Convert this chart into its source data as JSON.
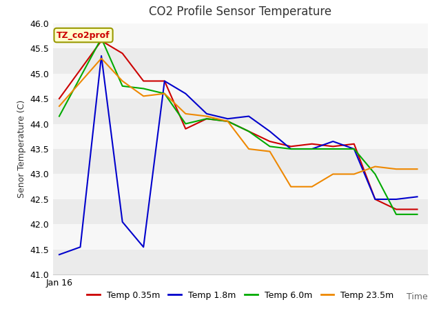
{
  "title": "CO2 Profile Sensor Temperature",
  "xlabel": "Time",
  "ylabel": "Senor Temperature (C)",
  "ylim": [
    41.0,
    46.0
  ],
  "yticks": [
    41.0,
    41.5,
    42.0,
    42.5,
    43.0,
    43.5,
    44.0,
    44.5,
    45.0,
    45.5,
    46.0
  ],
  "xticklabels": [
    "Jan 16"
  ],
  "annotation": "TZ_co2prof",
  "figure_bg": "#ffffff",
  "plot_bg": "#ffffff",
  "grid_color": "#e0e0e0",
  "series": {
    "Temp 0.35m": {
      "color": "#cc0000",
      "x": [
        0,
        2,
        3,
        4,
        5,
        6,
        7,
        8,
        9,
        10,
        11,
        12,
        13,
        14,
        15,
        16,
        17
      ],
      "y": [
        44.5,
        45.65,
        45.4,
        44.85,
        44.85,
        43.9,
        44.1,
        44.05,
        43.85,
        43.65,
        43.55,
        43.6,
        43.55,
        43.6,
        42.5,
        42.3,
        42.3
      ]
    },
    "Temp 1.8m": {
      "color": "#0000cc",
      "x": [
        0,
        1,
        2,
        3,
        4,
        5,
        6,
        7,
        8,
        9,
        10,
        11,
        12,
        13,
        14,
        15,
        16,
        17
      ],
      "y": [
        41.4,
        41.55,
        45.35,
        42.05,
        41.55,
        44.85,
        44.6,
        44.2,
        44.1,
        44.15,
        43.85,
        43.5,
        43.5,
        43.65,
        43.5,
        42.5,
        42.5,
        42.55
      ]
    },
    "Temp 6.0m": {
      "color": "#00aa00",
      "x": [
        0,
        2,
        3,
        4,
        5,
        6,
        7,
        8,
        9,
        10,
        11,
        12,
        13,
        14,
        15,
        16,
        17
      ],
      "y": [
        44.15,
        45.7,
        44.75,
        44.7,
        44.6,
        44.0,
        44.1,
        44.05,
        43.85,
        43.55,
        43.5,
        43.5,
        43.5,
        43.5,
        43.0,
        42.2,
        42.2
      ]
    },
    "Temp 23.5m": {
      "color": "#ee8800",
      "x": [
        0,
        2,
        3,
        4,
        5,
        6,
        7,
        8,
        9,
        10,
        11,
        12,
        13,
        14,
        15,
        16,
        17
      ],
      "y": [
        44.35,
        45.3,
        44.85,
        44.55,
        44.6,
        44.2,
        44.15,
        44.05,
        43.5,
        43.45,
        42.75,
        42.75,
        43.0,
        43.0,
        43.15,
        43.1,
        43.1
      ]
    }
  },
  "legend_order": [
    "Temp 0.35m",
    "Temp 1.8m",
    "Temp 6.0m",
    "Temp 23.5m"
  ],
  "title_fontsize": 12,
  "label_fontsize": 9,
  "tick_fontsize": 9,
  "legend_fontsize": 9
}
